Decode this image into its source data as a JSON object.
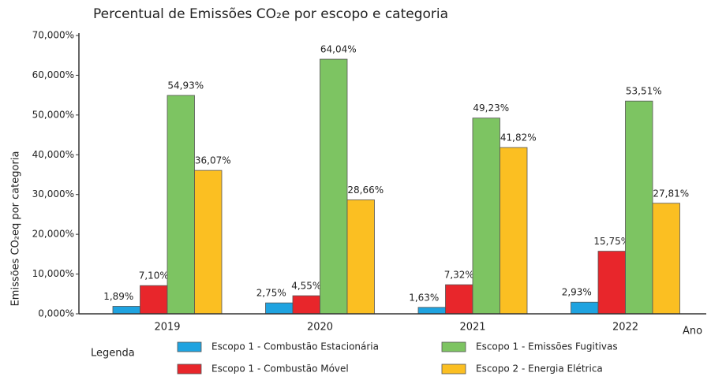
{
  "chart_data": {
    "type": "bar",
    "title": "Percentual de Emissões CO₂e por escopo e categoria",
    "y_label": "Emissões CO₂eq por categoria",
    "x_label": "Ano",
    "legend_title": "Legenda",
    "categories": [
      "2019",
      "2020",
      "2021",
      "2022"
    ],
    "series": [
      {
        "name": "Escopo 1 - Combustão Estacionária",
        "color": "#1fa3e0",
        "values": [
          1.89,
          2.75,
          1.63,
          2.93
        ],
        "value_labels": [
          "1,89%",
          "2,75%",
          "1,63%",
          "2,93%"
        ]
      },
      {
        "name": "Escopo 1 - Combustão Móvel",
        "color": "#e8262b",
        "values": [
          7.1,
          4.55,
          7.32,
          15.75
        ],
        "value_labels": [
          "7,10%",
          "4,55%",
          "7,32%",
          "15,75%"
        ]
      },
      {
        "name": "Escopo 1 - Emissões Fugitivas",
        "color": "#7dc462",
        "values": [
          54.93,
          64.04,
          49.23,
          53.51
        ],
        "value_labels": [
          "54,93%",
          "64,04%",
          "49,23%",
          "53,51%"
        ]
      },
      {
        "name": "Escopo 2 - Energia Elétrica",
        "color": "#fbbf22",
        "values": [
          36.07,
          28.66,
          41.82,
          27.81
        ],
        "value_labels": [
          "36,07%",
          "28,66%",
          "41,82%",
          "27,81%"
        ]
      }
    ],
    "ylim": [
      0,
      70
    ],
    "yticks": [
      {
        "value": 0,
        "label": "0,000%"
      },
      {
        "value": 10,
        "label": "10,000%"
      },
      {
        "value": 20,
        "label": "20,000%"
      },
      {
        "value": 30,
        "label": "30,000%"
      },
      {
        "value": 40,
        "label": "40,000%"
      },
      {
        "value": 50,
        "label": "50,000%"
      },
      {
        "value": 60,
        "label": "60,000%"
      },
      {
        "value": 70,
        "label": "70,000%"
      }
    ],
    "grid": false
  }
}
